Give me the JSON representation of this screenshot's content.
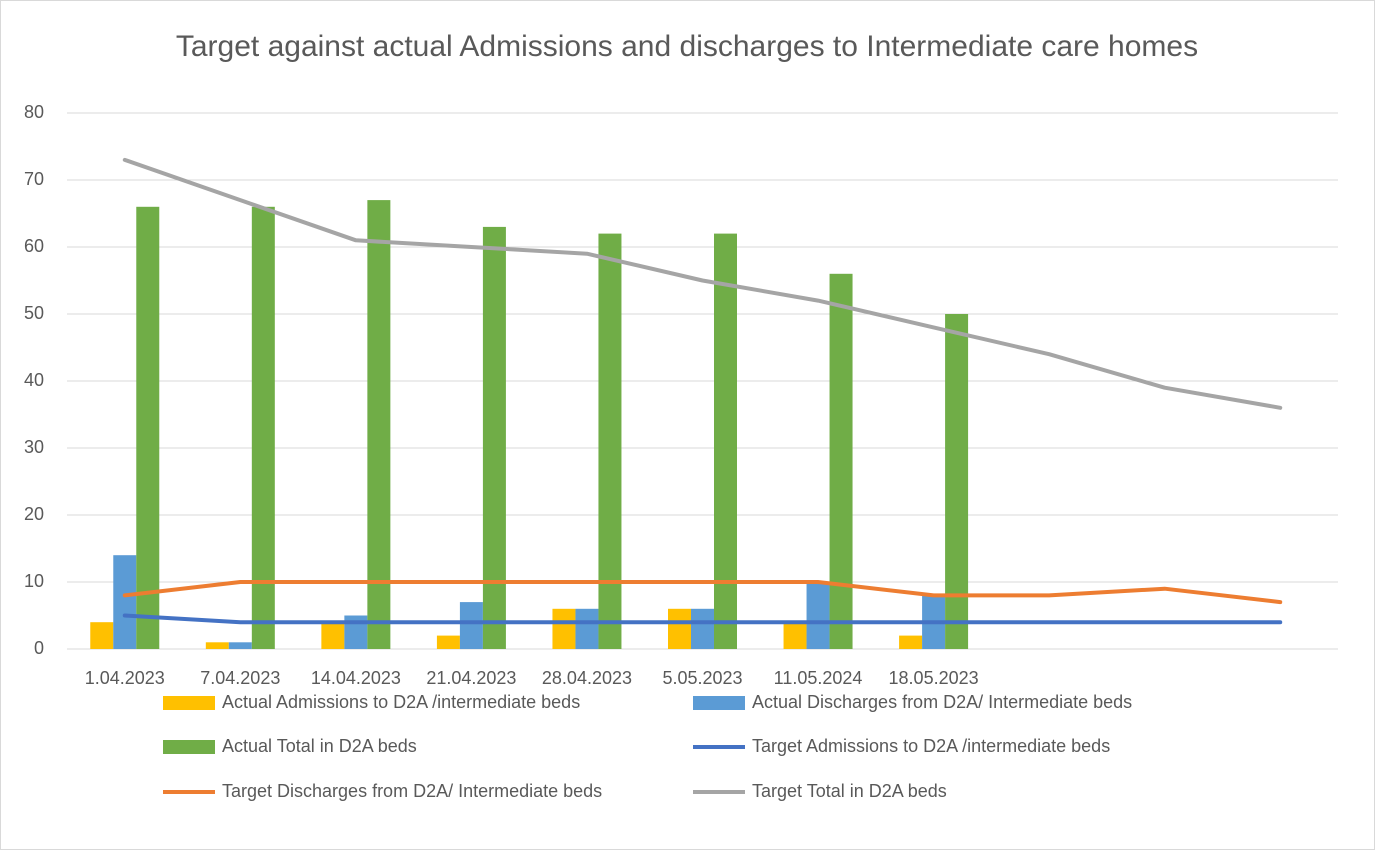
{
  "chart_data": {
    "type": "bar",
    "title": "Target against actual Admissions and discharges to Intermediate care homes",
    "categories": [
      "1.04.2023",
      "7.04.2023",
      "14.04.2023",
      "21.04.2023",
      "28.04.2023",
      "5.05.2023",
      "11.05.2024",
      "18.05.2023",
      null,
      null,
      null
    ],
    "ylim": [
      0,
      80
    ],
    "yticks": [
      0,
      10,
      20,
      30,
      40,
      50,
      60,
      70,
      80
    ],
    "grid": true,
    "legend": "bottom",
    "series": [
      {
        "name": "Actual Admissions to D2A /intermediate beds",
        "type": "bar",
        "color": "#FFC000",
        "values": [
          4,
          1,
          4,
          2,
          6,
          6,
          4,
          2,
          null,
          null,
          null
        ]
      },
      {
        "name": "Actual Discharges from D2A/ Intermediate beds",
        "type": "bar",
        "color": "#5B9BD5",
        "values": [
          14,
          1,
          5,
          7,
          6,
          6,
          10,
          8,
          null,
          null,
          null
        ]
      },
      {
        "name": "Actual Total in D2A beds",
        "type": "bar",
        "color": "#70AD47",
        "values": [
          66,
          66,
          67,
          63,
          62,
          62,
          56,
          50,
          null,
          null,
          null
        ]
      },
      {
        "name": "Target Admissions to D2A /intermediate beds",
        "type": "line",
        "color": "#4472C4",
        "values": [
          5,
          4,
          4,
          4,
          4,
          4,
          4,
          4,
          4,
          4,
          4
        ]
      },
      {
        "name": "Target Discharges from D2A/ Intermediate beds",
        "type": "line",
        "color": "#ED7D31",
        "values": [
          8,
          10,
          10,
          10,
          10,
          10,
          10,
          8,
          8,
          9,
          7
        ]
      },
      {
        "name": "Target Total in D2A beds",
        "type": "line",
        "color": "#A5A5A5",
        "values": [
          73,
          67,
          61,
          60,
          59,
          55,
          52,
          48,
          44,
          39,
          36
        ]
      }
    ]
  }
}
